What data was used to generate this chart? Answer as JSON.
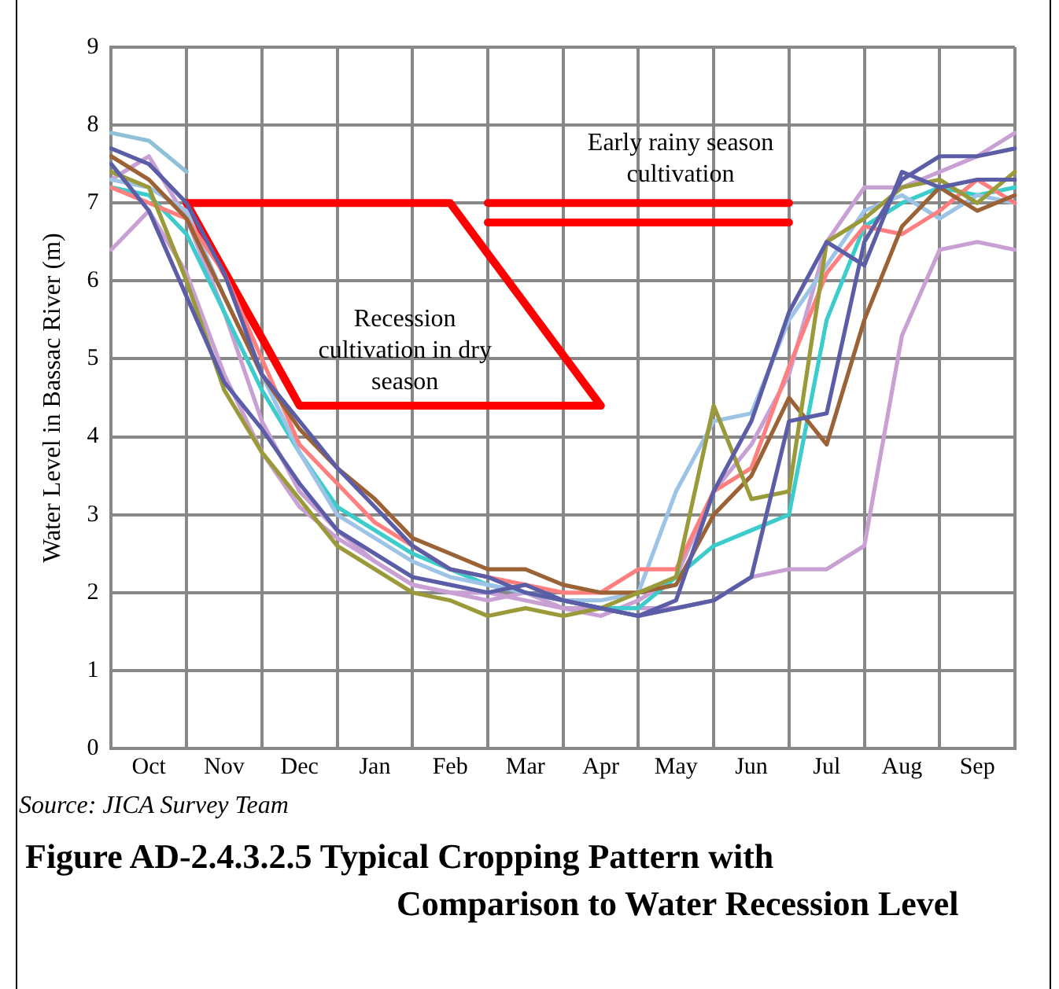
{
  "chart_data": {
    "type": "line",
    "title": "Figure AD-2.4.3.2.5 Typical Cropping Pattern with Comparison to Water Recession Level",
    "ylabel": "Water Level in Bassac River (m)",
    "annotations": [
      "Recession cultivation in dry season",
      "Early rainy season cultivation",
      "Source: JICA Survey Team"
    ],
    "categories": [
      null,
      "Oct",
      null,
      "Nov",
      null,
      "Dec",
      null,
      "Jan",
      null,
      "Feb",
      null,
      "Mar",
      null,
      "Apr",
      null,
      "May",
      null,
      "Jun",
      null,
      "Jul",
      null,
      "Aug",
      null,
      "Sep",
      null
    ],
    "ylim": [
      0,
      9
    ],
    "yticks": [
      0,
      1,
      2,
      3,
      4,
      5,
      6,
      7,
      8,
      9
    ],
    "grid": true,
    "legend": false,
    "marker": "none",
    "line_style": "solid",
    "series": [
      {
        "color": "#5b5ea6",
        "values": [
          7.5,
          6.9,
          5.8,
          4.7,
          4.1,
          3.4,
          2.8,
          2.5,
          2.2,
          2.1,
          2.0,
          2.1,
          1.9,
          1.8,
          1.7,
          1.9,
          3.3,
          4.2,
          5.6,
          6.5,
          6.2,
          7.4,
          7.2,
          7.3,
          7.3
        ]
      },
      {
        "color": "#5b5ea6",
        "values": [
          7.7,
          7.5,
          7.0,
          6.1,
          4.8,
          4.2,
          3.6,
          3.1,
          2.6,
          2.3,
          2.2,
          2.0,
          1.9,
          1.8,
          1.7,
          1.8,
          1.9,
          2.2,
          4.2,
          4.3,
          6.5,
          7.3,
          7.6,
          7.6,
          7.7
        ]
      },
      {
        "color": "#9a9a3a",
        "values": [
          7.4,
          7.2,
          6.0,
          4.6,
          3.8,
          3.2,
          2.6,
          2.3,
          2.0,
          1.9,
          1.7,
          1.8,
          1.7,
          1.8,
          2.0,
          2.2,
          4.4,
          3.2,
          3.3,
          6.5,
          6.8,
          7.2,
          7.3,
          7.0,
          7.4
        ]
      },
      {
        "color": "#9b6236",
        "values": [
          7.6,
          7.3,
          6.8,
          5.8,
          4.8,
          4.1,
          3.6,
          3.2,
          2.7,
          2.5,
          2.3,
          2.3,
          2.1,
          2.0,
          2.0,
          2.1,
          3.0,
          3.5,
          4.5,
          3.9,
          5.5,
          6.7,
          7.2,
          6.9,
          7.1
        ]
      },
      {
        "color": "#ff7f7f",
        "values": [
          7.2,
          7.0,
          6.8,
          6.1,
          5.0,
          3.9,
          3.4,
          2.9,
          2.6,
          2.3,
          2.2,
          2.1,
          2.0,
          2.0,
          2.3,
          2.3,
          3.3,
          3.6,
          4.9,
          6.1,
          6.7,
          6.6,
          6.9,
          7.3,
          7.0
        ]
      },
      {
        "color": "#9dc3e6",
        "values": [
          7.3,
          7.2,
          6.9,
          5.8,
          4.8,
          3.8,
          3.0,
          2.7,
          2.4,
          2.2,
          2.1,
          2.0,
          1.9,
          1.9,
          2.0,
          3.3,
          4.2,
          4.3,
          5.5,
          6.2,
          6.9,
          7.1,
          6.8,
          7.1,
          7.0
        ]
      },
      {
        "color": "#3ccccc",
        "values": [
          7.2,
          7.1,
          6.6,
          5.6,
          4.6,
          3.8,
          3.1,
          2.8,
          2.5,
          2.3,
          2.1,
          2.0,
          1.9,
          1.8,
          1.8,
          2.2,
          2.6,
          2.8,
          3.0,
          5.5,
          6.7,
          7.0,
          7.2,
          7.1,
          7.2
        ]
      },
      {
        "color": "#c9a0d4",
        "values": [
          6.4,
          6.9,
          6.1,
          4.8,
          3.8,
          3.1,
          2.7,
          2.4,
          2.1,
          2.0,
          2.0,
          1.9,
          1.8,
          1.8,
          1.8,
          1.8,
          1.9,
          2.2,
          2.3,
          2.3,
          2.6,
          5.3,
          6.4,
          6.5,
          6.4
        ]
      },
      {
        "color": "#c9a0d4",
        "values": [
          7.3,
          7.6,
          6.8,
          5.6,
          4.2,
          3.3,
          2.8,
          2.4,
          2.1,
          2.0,
          1.9,
          2.0,
          1.8,
          1.7,
          1.9,
          2.2,
          3.3,
          3.9,
          4.8,
          6.5,
          7.2,
          7.2,
          7.4,
          7.6,
          7.9
        ]
      },
      {
        "color": "#8ec1d8",
        "values": [
          7.9,
          7.8,
          7.4,
          null,
          null,
          null,
          null,
          null,
          null,
          null,
          null,
          null,
          null,
          null,
          null,
          null,
          null,
          null,
          null,
          null,
          null,
          null,
          null,
          null,
          null
        ]
      },
      {
        "color": "#ff0000",
        "values": [
          null,
          null,
          7.0,
          7.0,
          7.0,
          7.0,
          7.0,
          7.0,
          7.0,
          7.0,
          6.35,
          5.7,
          5.05,
          4.4,
          null,
          null,
          null,
          null,
          null,
          null,
          null,
          null,
          null,
          null,
          null
        ]
      },
      {
        "color": "#ff0000",
        "values": [
          null,
          null,
          7.0,
          6.13,
          5.27,
          4.4,
          4.4,
          4.4,
          4.4,
          4.4,
          4.4,
          4.4,
          4.4,
          4.4,
          null,
          null,
          null,
          null,
          null,
          null,
          null,
          null,
          null,
          null,
          null
        ]
      },
      {
        "color": "#ff0000",
        "values": [
          null,
          null,
          null,
          null,
          null,
          null,
          null,
          null,
          null,
          null,
          7.0,
          7.0,
          7.0,
          7.0,
          7.0,
          7.0,
          7.0,
          7.0,
          7.0,
          null,
          null,
          null,
          null,
          null,
          null
        ]
      },
      {
        "color": "#ff0000",
        "values": [
          null,
          null,
          null,
          null,
          null,
          null,
          null,
          null,
          null,
          null,
          6.75,
          6.75,
          6.75,
          6.75,
          6.75,
          6.75,
          6.75,
          6.75,
          6.75,
          null,
          null,
          null,
          null,
          null,
          null
        ]
      }
    ]
  }
}
